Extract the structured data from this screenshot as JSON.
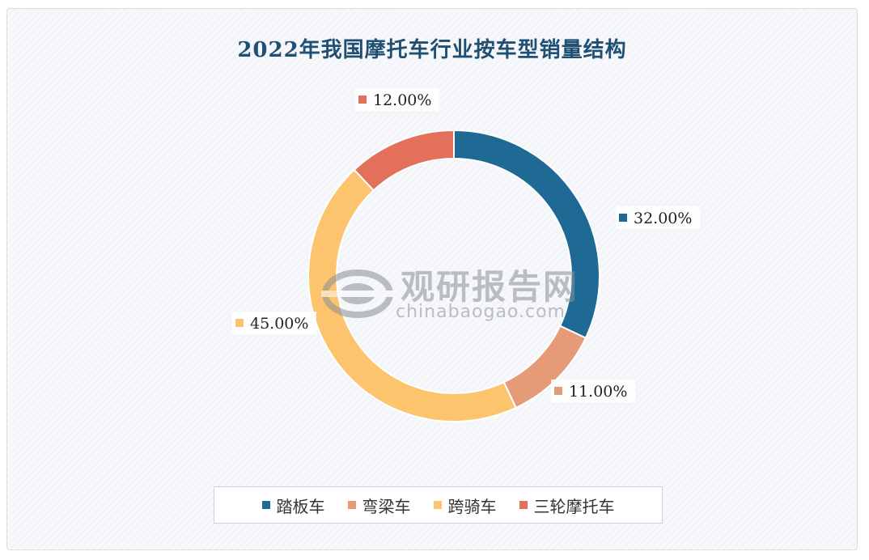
{
  "chart_data": {
    "type": "pie",
    "title": "2022年我国摩托车行业按车型销量结构",
    "categories": [
      "踏板车",
      "弯梁车",
      "跨骑车",
      "三轮摩托车"
    ],
    "values": [
      32.0,
      11.0,
      45.0,
      12.0
    ],
    "labels": [
      "32.00%",
      "11.00%",
      "45.00%",
      "12.00%"
    ],
    "colors": [
      "#1e6a94",
      "#e59a78",
      "#fcc46c",
      "#e3705a"
    ],
    "donut": true,
    "legend_position": "bottom"
  },
  "watermark": {
    "name": "观研报告网",
    "site": "chinabaogao.com"
  }
}
